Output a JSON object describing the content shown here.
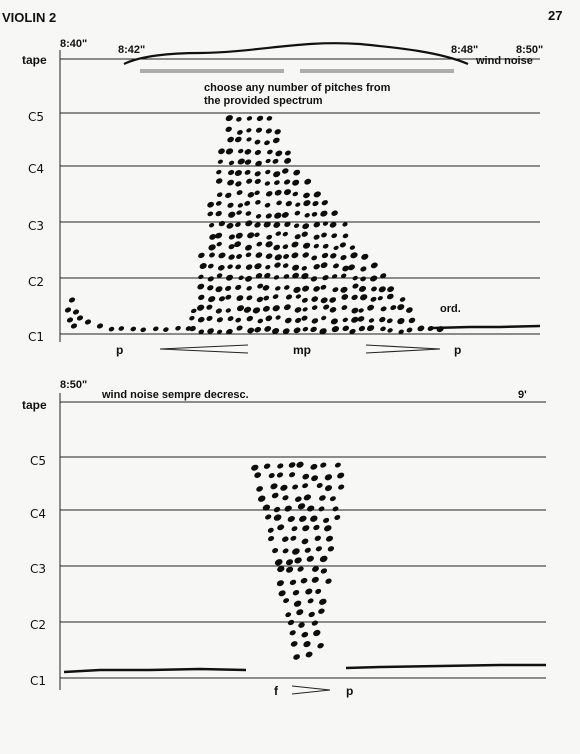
{
  "page": {
    "part_label": "VIOLIN 2",
    "page_number": "27"
  },
  "system1": {
    "start_time": "8:40\"",
    "tape_label": "tape",
    "tape_times": [
      "8:42\"",
      "8:48\"",
      "8:50\""
    ],
    "tape_note": "wind noise",
    "instruction_line1": "choose any number of pitches from",
    "instruction_line2": "the provided spectrum",
    "pitch_labels": [
      "C5",
      "C4",
      "C3",
      "C2",
      "C1"
    ],
    "technique": "ord.",
    "dynamics": [
      "p",
      "mp",
      "p"
    ]
  },
  "system2": {
    "start_time": "8:50\"",
    "end_time": "9'",
    "tape_label": "tape",
    "tape_note": "wind noise sempre decresc.",
    "pitch_labels": [
      "C5",
      "C4",
      "C3",
      "C2",
      "C1"
    ],
    "dynamics": [
      "f",
      "p"
    ]
  },
  "colors": {
    "paper": "#f7f7f5",
    "ink": "#111111"
  }
}
